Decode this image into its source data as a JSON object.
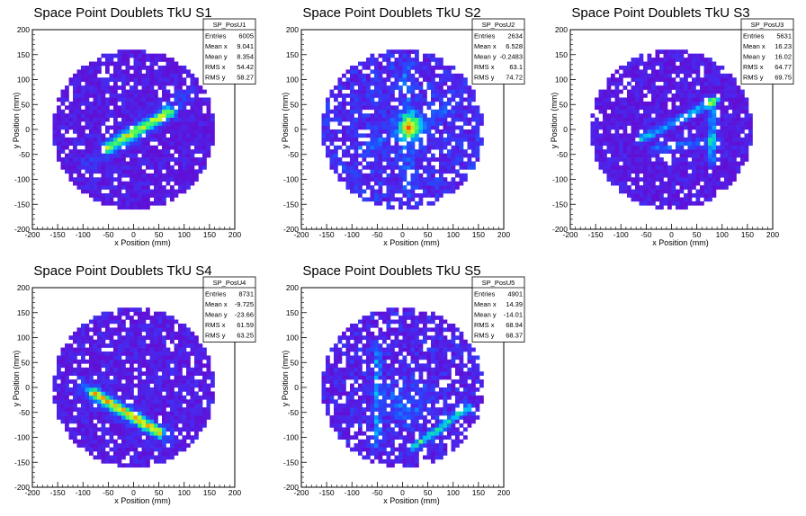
{
  "chart_data": [
    {
      "type": "heatmap",
      "title": "Space Point Doublets TkU S1",
      "xlabel": "x Position (mm)",
      "ylabel": "y Position (mm)",
      "xlim": [
        -200,
        200
      ],
      "ylim": [
        -200,
        200
      ],
      "xticks": [
        "-200",
        "-150",
        "-100",
        "-50",
        "0",
        "50",
        "100",
        "150",
        "200"
      ],
      "yticks": [
        "-200",
        "-150",
        "-100",
        "-50",
        "0",
        "50",
        "100",
        "150",
        "200"
      ],
      "disk_radius_mm": 160,
      "pattern": "band",
      "stats": {
        "name": "SP_PosU1",
        "rows": [
          {
            "label": "Entries",
            "value": "6005"
          },
          {
            "label": "Mean x",
            "value": "9.041"
          },
          {
            "label": "Mean y",
            "value": "8.354"
          },
          {
            "label": "RMS x",
            "value": "54.42"
          },
          {
            "label": "RMS y",
            "value": "58.27"
          }
        ]
      }
    },
    {
      "type": "heatmap",
      "title": "Space Point Doublets TkU S2",
      "xlabel": "x Position (mm)",
      "ylabel": "y Position (mm)",
      "xlim": [
        -200,
        200
      ],
      "ylim": [
        -200,
        200
      ],
      "xticks": [
        "-200",
        "-150",
        "-100",
        "-50",
        "0",
        "50",
        "100",
        "150",
        "200"
      ],
      "yticks": [
        "-200",
        "-150",
        "-100",
        "-50",
        "0",
        "50",
        "100",
        "150",
        "200"
      ],
      "disk_radius_mm": 160,
      "pattern": "center",
      "stats": {
        "name": "SP_PosU2",
        "rows": [
          {
            "label": "Entries",
            "value": "2634"
          },
          {
            "label": "Mean x",
            "value": "6.528"
          },
          {
            "label": "Mean y",
            "value": "-0.2483"
          },
          {
            "label": "RMS x",
            "value": "63.1"
          },
          {
            "label": "RMS y",
            "value": "74.72"
          }
        ]
      }
    },
    {
      "type": "heatmap",
      "title": "Space Point Doublets TkU S3",
      "xlabel": "x Position (mm)",
      "ylabel": "y Position (mm)",
      "xlim": [
        -200,
        200
      ],
      "ylim": [
        -200,
        200
      ],
      "xticks": [
        "-200",
        "-150",
        "-100",
        "-50",
        "0",
        "50",
        "100",
        "150",
        "200"
      ],
      "yticks": [
        "-200",
        "-150",
        "-100",
        "-50",
        "0",
        "50",
        "100",
        "150",
        "200"
      ],
      "disk_radius_mm": 160,
      "pattern": "triangle",
      "stats": {
        "name": "SP_PosU3",
        "rows": [
          {
            "label": "Entries",
            "value": "5631"
          },
          {
            "label": "Mean x",
            "value": "16.23"
          },
          {
            "label": "Mean y",
            "value": "16.02"
          },
          {
            "label": "RMS x",
            "value": "64.77"
          },
          {
            "label": "RMS y",
            "value": "69.75"
          }
        ]
      }
    },
    {
      "type": "heatmap",
      "title": "Space Point Doublets TkU S4",
      "xlabel": "x Position (mm)",
      "ylabel": "y Position (mm)",
      "xlim": [
        -200,
        200
      ],
      "ylim": [
        -200,
        200
      ],
      "xticks": [
        "-200",
        "-150",
        "-100",
        "-50",
        "0",
        "50",
        "100",
        "150",
        "200"
      ],
      "yticks": [
        "-200",
        "-150",
        "-100",
        "-50",
        "0",
        "50",
        "100",
        "150",
        "200"
      ],
      "disk_radius_mm": 160,
      "pattern": "diag",
      "stats": {
        "name": "SP_PosU4",
        "rows": [
          {
            "label": "Entries",
            "value": "8731"
          },
          {
            "label": "Mean x",
            "value": "-9.725"
          },
          {
            "label": "Mean y",
            "value": "-23.66"
          },
          {
            "label": "RMS x",
            "value": "61.59"
          },
          {
            "label": "RMS y",
            "value": "63.25"
          }
        ]
      }
    },
    {
      "type": "heatmap",
      "title": "Space Point Doublets TkU S5",
      "xlabel": "x Position (mm)",
      "ylabel": "y Position (mm)",
      "xlim": [
        -200,
        200
      ],
      "ylim": [
        -200,
        200
      ],
      "xticks": [
        "-200",
        "-150",
        "-100",
        "-50",
        "0",
        "50",
        "100",
        "150",
        "200"
      ],
      "yticks": [
        "-200",
        "-150",
        "-100",
        "-50",
        "0",
        "50",
        "100",
        "150",
        "200"
      ],
      "disk_radius_mm": 160,
      "pattern": "lines",
      "stats": {
        "name": "SP_PosU5",
        "rows": [
          {
            "label": "Entries",
            "value": "4901"
          },
          {
            "label": "Mean x",
            "value": "14.39"
          },
          {
            "label": "Mean y",
            "value": "-14.01"
          },
          {
            "label": "RMS x",
            "value": "68.94"
          },
          {
            "label": "RMS y",
            "value": "68.37"
          }
        ]
      }
    }
  ]
}
